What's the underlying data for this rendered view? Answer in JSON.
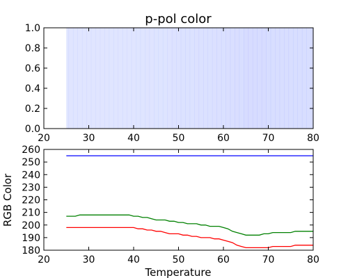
{
  "chart_data": [
    {
      "type": "heatmap",
      "title": "p-pol color",
      "xlabel": "",
      "ylabel": "",
      "xlim": [
        20,
        80
      ],
      "ylim": [
        0,
        1
      ],
      "xticks": [
        "20",
        "30",
        "40",
        "50",
        "60",
        "70",
        "80"
      ],
      "yticks": [
        "0.0",
        "0.2",
        "0.4",
        "0.6",
        "0.8",
        "1.0"
      ],
      "grid": false,
      "x": [
        25,
        26,
        27,
        28,
        29,
        30,
        31,
        32,
        33,
        34,
        35,
        36,
        37,
        38,
        39,
        40,
        41,
        42,
        43,
        44,
        45,
        46,
        47,
        48,
        49,
        50,
        51,
        52,
        53,
        54,
        55,
        56,
        57,
        58,
        59,
        60,
        61,
        62,
        63,
        64,
        65,
        66,
        67,
        68,
        69,
        70,
        71,
        72,
        73,
        74,
        75,
        76,
        77,
        78,
        79,
        80
      ],
      "colors": [
        "#C6CFFF",
        "#C6CFFF",
        "#C6CFFF",
        "#C6D0FF",
        "#C6D0FF",
        "#C6D0FF",
        "#C6D0FF",
        "#C6D0FF",
        "#C6D0FF",
        "#C6D0FF",
        "#C6D0FF",
        "#C6D0FF",
        "#C6D0FF",
        "#C6D0FF",
        "#C6D0FF",
        "#C6D0FF",
        "#C5CFFF",
        "#C5CFFF",
        "#C4CEFF",
        "#C4CEFF",
        "#C3CDFF",
        "#C3CDFF",
        "#C3CDFF",
        "#C2CCFF",
        "#C1CBFF",
        "#C1CBFF",
        "#C0CAFF",
        "#C0CAFF",
        "#BFCAFF",
        "#BFC9FF",
        "#BEC9FF",
        "#BEC8FF",
        "#BEC8FF",
        "#BDC7FF",
        "#BDC7FF",
        "#BCC6FF",
        "#BBC5FF",
        "#BAC4FF",
        "#B9C3FF",
        "#B8C2FF",
        "#B7C0FF",
        "#B7C0FF",
        "#B7C0FF",
        "#B7C0FF",
        "#B7C0FF",
        "#B7C1FF",
        "#B8C2FF",
        "#B8C2FF",
        "#B8C2FF",
        "#B8C2FF",
        "#B8C2FF",
        "#B8C3FF",
        "#B8C3FF",
        "#B8C3FF",
        "#B8C3FF",
        "#B8C3FF"
      ]
    },
    {
      "type": "line",
      "title": "",
      "xlabel": "Temperature",
      "ylabel": "RGB Color",
      "xlim": [
        20,
        80
      ],
      "ylim": [
        180,
        260
      ],
      "xticks": [
        "20",
        "30",
        "40",
        "50",
        "60",
        "70",
        "80"
      ],
      "yticks": [
        "180",
        "190",
        "200",
        "210",
        "220",
        "230",
        "240",
        "250",
        "260"
      ],
      "grid": false,
      "x": [
        25,
        26,
        27,
        28,
        29,
        30,
        31,
        32,
        33,
        34,
        35,
        36,
        37,
        38,
        39,
        40,
        41,
        42,
        43,
        44,
        45,
        46,
        47,
        48,
        49,
        50,
        51,
        52,
        53,
        54,
        55,
        56,
        57,
        58,
        59,
        60,
        61,
        62,
        63,
        64,
        65,
        66,
        67,
        68,
        69,
        70,
        71,
        72,
        73,
        74,
        75,
        76,
        77,
        78,
        79,
        80
      ],
      "series": [
        {
          "color": "#0000ff",
          "values": [
            255,
            255,
            255,
            255,
            255,
            255,
            255,
            255,
            255,
            255,
            255,
            255,
            255,
            255,
            255,
            255,
            255,
            255,
            255,
            255,
            255,
            255,
            255,
            255,
            255,
            255,
            255,
            255,
            255,
            255,
            255,
            255,
            255,
            255,
            255,
            255,
            255,
            255,
            255,
            255,
            255,
            255,
            255,
            255,
            255,
            255,
            255,
            255,
            255,
            255,
            255,
            255,
            255,
            255,
            255,
            255
          ]
        },
        {
          "color": "#008000",
          "values": [
            207,
            207,
            207,
            208,
            208,
            208,
            208,
            208,
            208,
            208,
            208,
            208,
            208,
            208,
            208,
            207,
            207,
            206,
            206,
            205,
            204,
            204,
            204,
            203,
            203,
            202,
            202,
            201,
            201,
            201,
            200,
            200,
            199,
            199,
            199,
            198,
            197,
            195,
            194,
            193,
            192,
            192,
            192,
            192,
            193,
            193,
            194,
            194,
            194,
            194,
            194,
            195,
            195,
            195,
            195,
            195
          ]
        },
        {
          "color": "#ff0000",
          "values": [
            198,
            198,
            198,
            198,
            198,
            198,
            198,
            198,
            198,
            198,
            198,
            198,
            198,
            198,
            198,
            198,
            197,
            197,
            196,
            196,
            195,
            195,
            194,
            193,
            193,
            193,
            192,
            192,
            191,
            191,
            190,
            190,
            190,
            189,
            189,
            188,
            187,
            186,
            184,
            183,
            182,
            182,
            182,
            182,
            182,
            182,
            183,
            183,
            183,
            183,
            183,
            184,
            184,
            184,
            184,
            184
          ]
        }
      ]
    }
  ]
}
